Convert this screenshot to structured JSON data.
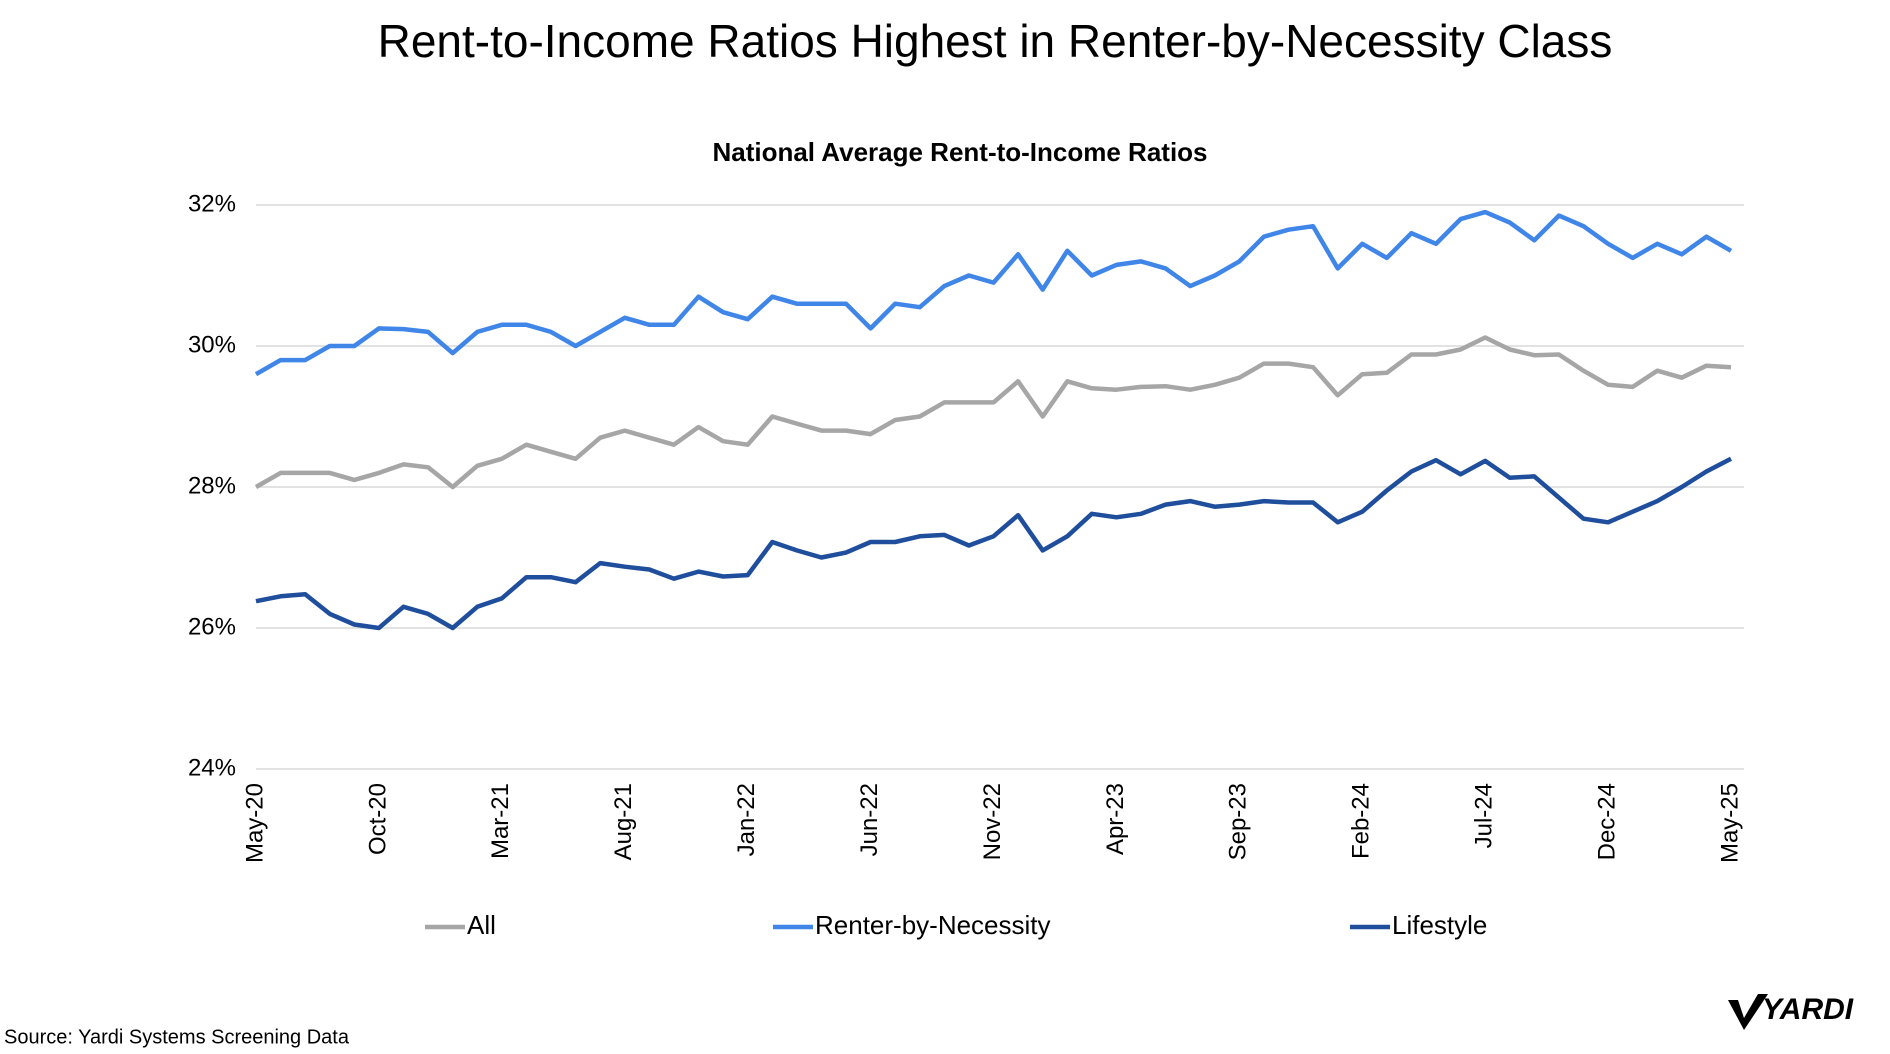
{
  "chart_data": {
    "type": "line",
    "title": "Rent-to-Income Ratios Highest in Renter-by-Necessity Class",
    "subtitle": "National Average Rent-to-Income Ratios",
    "source": "Source: Yardi Systems Screening Data",
    "logo": "YARDI",
    "categories": [
      "May-20",
      null,
      null,
      null,
      null,
      "Oct-20",
      null,
      null,
      null,
      null,
      "Mar-21",
      null,
      null,
      null,
      null,
      "Aug-21",
      null,
      null,
      null,
      null,
      "Jan-22",
      null,
      null,
      null,
      null,
      "Jun-22",
      null,
      null,
      null,
      null,
      "Nov-22",
      null,
      null,
      null,
      null,
      "Apr-23",
      null,
      null,
      null,
      null,
      "Sep-23",
      null,
      null,
      null,
      null,
      "Feb-24",
      null,
      null,
      null,
      null,
      "Jul-24",
      null,
      null,
      null,
      null,
      "Dec-24",
      null,
      null,
      null,
      null,
      "May-25"
    ],
    "series": [
      {
        "name": "All",
        "color": "#a6a6a6",
        "values": [
          28.0,
          28.2,
          28.2,
          28.2,
          28.1,
          28.2,
          28.32,
          28.28,
          28.0,
          28.3,
          28.4,
          28.6,
          28.5,
          28.4,
          28.7,
          28.8,
          28.7,
          28.6,
          28.85,
          28.65,
          28.6,
          29.0,
          28.9,
          28.8,
          28.8,
          28.75,
          28.95,
          29.0,
          29.2,
          29.2,
          29.2,
          29.5,
          29.0,
          29.5,
          29.4,
          29.38,
          29.42,
          29.43,
          29.38,
          29.45,
          29.55,
          29.75,
          29.75,
          29.7,
          29.3,
          29.6,
          29.62,
          29.88,
          29.88,
          29.95,
          30.12,
          29.95,
          29.87,
          29.88,
          29.65,
          29.45,
          29.42,
          29.65,
          29.55,
          29.72,
          29.7
        ]
      },
      {
        "name": "Renter-by-Necessity",
        "color": "#3f86e8",
        "values": [
          29.6,
          29.8,
          29.8,
          30.0,
          30.0,
          30.25,
          30.24,
          30.2,
          29.9,
          30.2,
          30.3,
          30.3,
          30.2,
          30.0,
          30.2,
          30.4,
          30.3,
          30.3,
          30.7,
          30.48,
          30.38,
          30.7,
          30.6,
          30.6,
          30.6,
          30.25,
          30.6,
          30.55,
          30.85,
          31.0,
          30.9,
          31.3,
          30.8,
          31.35,
          31.0,
          31.15,
          31.2,
          31.1,
          30.85,
          31.0,
          31.2,
          31.55,
          31.65,
          31.7,
          31.1,
          31.45,
          31.25,
          31.6,
          31.45,
          31.8,
          31.9,
          31.75,
          31.5,
          31.85,
          31.7,
          31.45,
          31.25,
          31.45,
          31.3,
          31.55,
          31.35
        ]
      },
      {
        "name": "Lifestyle",
        "color": "#1f4e9c",
        "values": [
          26.38,
          26.45,
          26.48,
          26.2,
          26.05,
          26.0,
          26.3,
          26.2,
          26.0,
          26.3,
          26.42,
          26.72,
          26.72,
          26.65,
          26.92,
          26.87,
          26.83,
          26.7,
          26.8,
          26.73,
          26.75,
          27.22,
          27.1,
          27.0,
          27.07,
          27.22,
          27.22,
          27.3,
          27.32,
          27.17,
          27.3,
          27.6,
          27.1,
          27.3,
          27.62,
          27.57,
          27.62,
          27.75,
          27.8,
          27.72,
          27.75,
          27.8,
          27.78,
          27.78,
          27.5,
          27.65,
          27.95,
          28.22,
          28.38,
          28.18,
          28.37,
          28.13,
          28.15,
          27.85,
          27.55,
          27.5,
          27.65,
          27.8,
          28.0,
          28.22,
          28.4
        ]
      }
    ],
    "ylim": [
      24,
      32
    ],
    "yticks": [
      {
        "value": 24,
        "label": "24%"
      },
      {
        "value": 26,
        "label": "26%"
      },
      {
        "value": 28,
        "label": "28%"
      },
      {
        "value": 30,
        "label": "30%"
      },
      {
        "value": 32,
        "label": "32%"
      }
    ],
    "grid": true,
    "legend": "bottom"
  }
}
